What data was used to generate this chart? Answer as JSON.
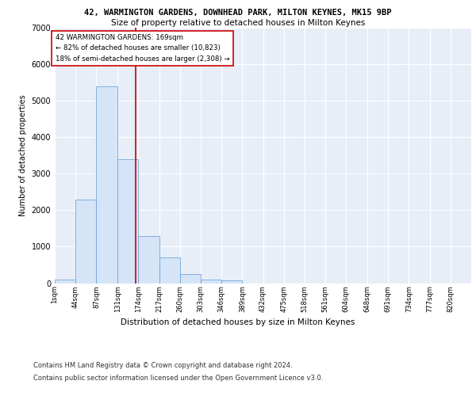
{
  "title1": "42, WARMINGTON GARDENS, DOWNHEAD PARK, MILTON KEYNES, MK15 9BP",
  "title2": "Size of property relative to detached houses in Milton Keynes",
  "xlabel": "Distribution of detached houses by size in Milton Keynes",
  "ylabel": "Number of detached properties",
  "footer1": "Contains HM Land Registry data © Crown copyright and database right 2024.",
  "footer2": "Contains public sector information licensed under the Open Government Licence v3.0.",
  "annotation_line1": "42 WARMINGTON GARDENS: 169sqm",
  "annotation_line2": "← 82% of detached houses are smaller (10,823)",
  "annotation_line3": "18% of semi-detached houses are larger (2,308) →",
  "property_size": 169,
  "bin_edges": [
    1,
    44,
    87,
    131,
    174,
    217,
    260,
    303,
    346,
    389,
    432,
    475,
    518,
    561,
    604,
    648,
    691,
    734,
    777,
    820,
    863
  ],
  "bar_heights": [
    100,
    2280,
    5400,
    3400,
    1300,
    700,
    250,
    100,
    75,
    0,
    0,
    0,
    0,
    0,
    0,
    0,
    0,
    0,
    0,
    0
  ],
  "bar_color": "#d6e4f7",
  "bar_edge_color": "#5b9bd5",
  "vline_color": "#cc0000",
  "background_color": "#e8eef8",
  "grid_color": "#ffffff",
  "ylim": [
    0,
    7000
  ],
  "yticks": [
    0,
    1000,
    2000,
    3000,
    4000,
    5000,
    6000,
    7000
  ]
}
